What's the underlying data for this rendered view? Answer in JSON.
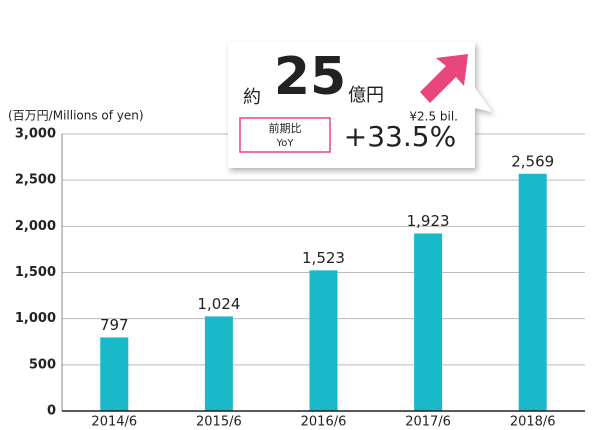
{
  "chart_data": {
    "type": "bar",
    "unit_label": "(百万円/Millions of yen)",
    "categories": [
      "2014/6",
      "2015/6",
      "2016/6",
      "2017/6",
      "2018/6"
    ],
    "values": [
      797,
      1024,
      1523,
      1923,
      2569
    ],
    "value_labels": [
      "797",
      "1,024",
      "1,523",
      "1,923",
      "2,569"
    ],
    "color": "#1ab9c9",
    "ylim": [
      0,
      3000
    ],
    "yticks": [
      0,
      500,
      {
        "value": 1000,
        "label": "1,000"
      },
      {
        "value": 1500,
        "label": "1,500"
      },
      {
        "value": 2000,
        "label": "2,000"
      },
      {
        "value": 2500,
        "label": "2,500"
      },
      {
        "value": 3000,
        "label": "3,000"
      }
    ],
    "grid": true,
    "annotations": {
      "approx": "約",
      "amount": "25",
      "unit": "億円",
      "english": "¥2.5 bil.",
      "yoy_ja": "前期比",
      "yoy_en": "YoY",
      "growth": "+33.5%"
    }
  }
}
